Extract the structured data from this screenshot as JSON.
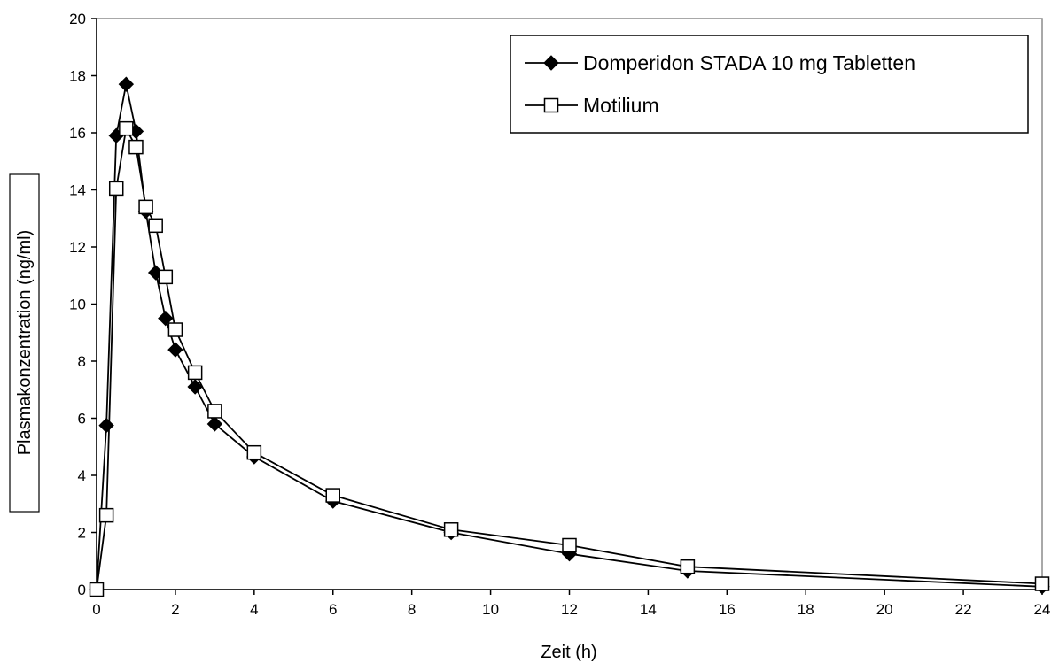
{
  "chart_data": {
    "type": "line",
    "title": "",
    "xlabel": "Zeit (h)",
    "ylabel": "Plasmakonzentration (ng/ml)",
    "xlim": [
      0,
      24
    ],
    "ylim": [
      0,
      20
    ],
    "xticks": [
      0,
      2,
      4,
      6,
      8,
      10,
      12,
      14,
      16,
      18,
      20,
      22,
      24
    ],
    "yticks": [
      0,
      2,
      4,
      6,
      8,
      10,
      12,
      14,
      16,
      18,
      20
    ],
    "grid": false,
    "legend_position": "top-right",
    "series": [
      {
        "name": "Domperidon STADA 10 mg Tabletten",
        "marker": "filled-diamond",
        "color": "#000000",
        "x": [
          0,
          0.25,
          0.5,
          0.75,
          1,
          1.25,
          1.5,
          1.75,
          2,
          2.5,
          3,
          4,
          6,
          9,
          12,
          15,
          24
        ],
        "y": [
          0,
          5.75,
          15.9,
          17.7,
          16.05,
          13.25,
          11.1,
          9.5,
          8.4,
          7.1,
          5.8,
          4.65,
          3.1,
          2.0,
          1.25,
          0.65,
          0.1
        ]
      },
      {
        "name": "Motilium",
        "marker": "open-square",
        "color": "#000000",
        "x": [
          0,
          0.25,
          0.5,
          0.75,
          1,
          1.25,
          1.5,
          1.75,
          2,
          2.5,
          3,
          4,
          6,
          9,
          12,
          15,
          24
        ],
        "y": [
          0,
          2.6,
          14.05,
          16.15,
          15.5,
          13.4,
          12.75,
          10.95,
          9.1,
          7.6,
          6.25,
          4.8,
          3.3,
          2.1,
          1.55,
          0.8,
          0.2
        ]
      }
    ]
  }
}
